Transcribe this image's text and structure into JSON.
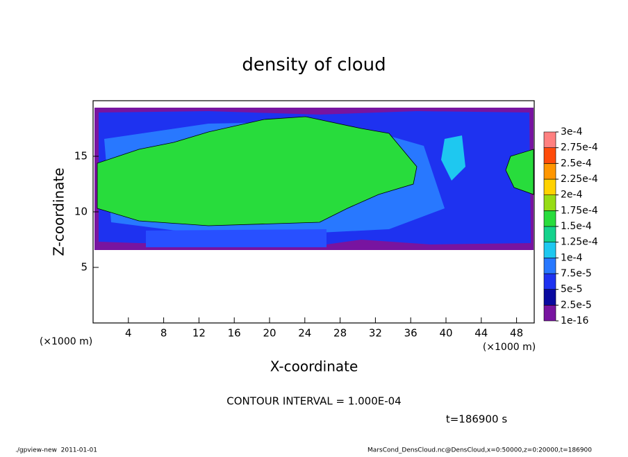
{
  "chart_data": {
    "type": "heatmap",
    "title": "density of cloud",
    "x_label": "X-coordinate",
    "y_label": "Z-coordinate",
    "x_unit": "(×1000 m)",
    "xlim": [
      0,
      50
    ],
    "xticks": [
      4,
      8,
      12,
      16,
      20,
      24,
      28,
      32,
      36,
      40,
      44,
      48
    ],
    "ylim": [
      0,
      20
    ],
    "yticks": [
      5,
      10,
      15
    ],
    "colorbar": {
      "levels": [
        1e-16,
        {
          "value": 2.5e-05,
          "label": "2.5e-5"
        },
        {
          "value": 5e-05,
          "label": "5e-5"
        },
        {
          "value": 7.5e-05,
          "label": "7.5e-5"
        },
        {
          "value": 0.0001,
          "label": "1e-4"
        },
        {
          "value": 0.000125,
          "label": "1.25e-4"
        },
        {
          "value": 0.00015,
          "label": "1.5e-4"
        },
        {
          "value": 0.000175,
          "label": "1.75e-4"
        },
        {
          "value": 0.0002,
          "label": "2e-4"
        },
        {
          "value": 0.000225,
          "label": "2.25e-4"
        },
        {
          "value": 0.00025,
          "label": "2.5e-4"
        },
        {
          "value": 0.000275,
          "label": "2.75e-4"
        },
        {
          "value": 0.0003,
          "label": "3e-4"
        }
      ],
      "colors": [
        "#7814a0",
        "#0a0aa0",
        "#1e32f0",
        "#2878ff",
        "#1ec8f0",
        "#14d28c",
        "#28dc3c",
        "#96dc14",
        "#ffd200",
        "#ff9600",
        "#ff4b0a",
        "#ff8080"
      ]
    },
    "contour_note": "CONTOUR INTERVAL = 1.000E-04",
    "time_label": "t=186900 s",
    "footer_left": "./gpview-new  2011-01-01",
    "footer_right": "MarsCond_DensCloud.nc@DensCloud,x=0:50000,z=0:20000,t=186900"
  }
}
